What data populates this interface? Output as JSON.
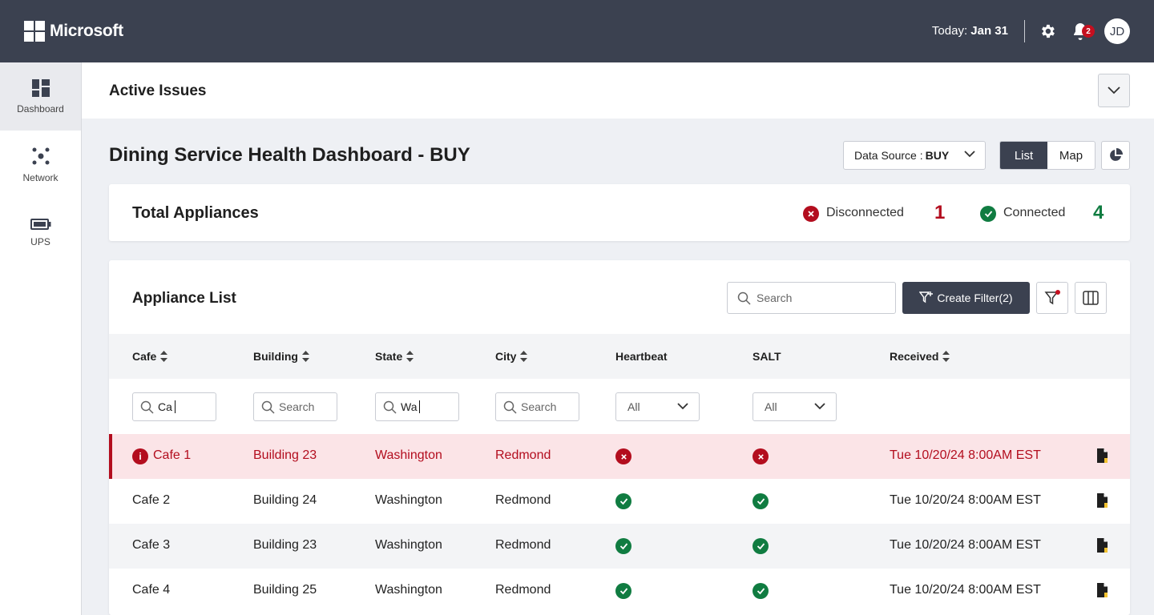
{
  "app": {
    "brand": "Microsoft"
  },
  "header": {
    "today_label": "Today:",
    "today_value": "Jan 31",
    "notification_count": "2",
    "avatar_initials": "JD"
  },
  "sidebar": {
    "items": [
      {
        "label": "Dashboard",
        "icon": "dashboard-icon",
        "active": true
      },
      {
        "label": "Network",
        "icon": "network-icon",
        "active": false
      },
      {
        "label": "UPS",
        "icon": "battery-icon",
        "active": false
      }
    ]
  },
  "issues": {
    "title": "Active Issues"
  },
  "page": {
    "title": "Dining Service Health Dashboard - BUY",
    "data_source_label": "Data Source : ",
    "data_source_value": "BUY",
    "view_list": "List",
    "view_map": "Map",
    "active_view": "List"
  },
  "totals": {
    "title": "Total Appliances",
    "disconnected_label": "Disconnected",
    "disconnected_count": "1",
    "connected_label": "Connected",
    "connected_count": "4"
  },
  "appliance_list": {
    "title": "Appliance List",
    "search_placeholder": "Search",
    "create_filter_label": "Create Filter(2)",
    "columns": [
      "Cafe",
      "Building",
      "State",
      "City",
      "Heartbeat",
      "SALT",
      "Received"
    ],
    "filters": {
      "cafe": "Ca",
      "building_placeholder": "Search",
      "state": "Wa",
      "city_placeholder": "Search",
      "heartbeat": "All",
      "salt": "All"
    },
    "rows": [
      {
        "cafe": "Cafe 1",
        "building": "Building 23",
        "state": "Washington",
        "city": "Redmond",
        "heartbeat": "error",
        "salt": "error",
        "received": "Tue 10/20/24 8:00AM EST",
        "alert": true
      },
      {
        "cafe": "Cafe 2",
        "building": "Building 24",
        "state": "Washington",
        "city": "Redmond",
        "heartbeat": "ok",
        "salt": "ok",
        "received": "Tue 10/20/24 8:00AM EST",
        "alert": false
      },
      {
        "cafe": "Cafe 3",
        "building": "Building 23",
        "state": "Washington",
        "city": "Redmond",
        "heartbeat": "ok",
        "salt": "ok",
        "received": "Tue 10/20/24 8:00AM EST",
        "alert": false
      },
      {
        "cafe": "Cafe 4",
        "building": "Building 25",
        "state": "Washington",
        "city": "Redmond",
        "heartbeat": "ok",
        "salt": "ok",
        "received": "Tue 10/20/24 8:00AM EST",
        "alert": false
      }
    ]
  },
  "colors": {
    "topbar": "#3b4150",
    "error": "#b30d1e",
    "success": "#107c41",
    "error_row_bg": "#fbe4e7"
  }
}
